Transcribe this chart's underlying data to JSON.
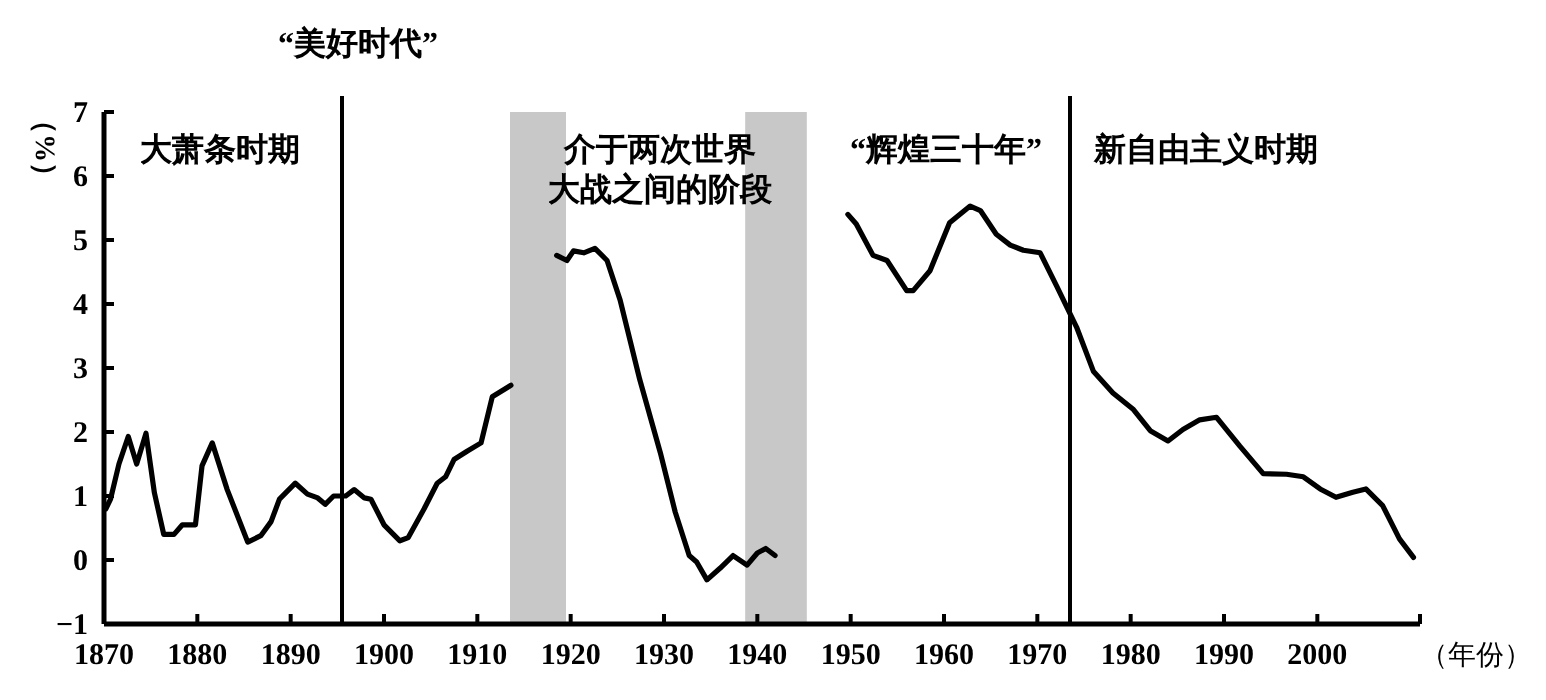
{
  "chart_data": {
    "type": "line",
    "xlabel": "（年份）",
    "ylabel": "（%）",
    "xlim": [
      1870,
      2011
    ],
    "ylim": [
      -1,
      7
    ],
    "xticks": [
      1870,
      1880,
      1890,
      1900,
      1910,
      1920,
      1930,
      1940,
      1950,
      1960,
      1970,
      1980,
      1990,
      2000
    ],
    "yticks": [
      -1,
      0,
      1,
      2,
      3,
      4,
      5,
      6,
      7
    ],
    "grid": false,
    "marker": "none",
    "line_style": "solid",
    "ref_lines": [
      {
        "axis": "x",
        "value": 1895.5,
        "label": "“美好时代”",
        "color": "#000000"
      },
      {
        "axis": "x",
        "value": 1973.5,
        "label": null,
        "color": "#000000"
      }
    ],
    "bands": [
      {
        "axis": "x",
        "from": 1913.5,
        "to": 1919.5,
        "label": null,
        "color": "#c8c8c8"
      },
      {
        "axis": "x",
        "from": 1938.7,
        "to": 1945.3,
        "label": null,
        "color": "#c8c8c8"
      }
    ],
    "annotations": [
      "大萧条时期",
      "介于两次世界大战之间的阶段",
      "“辉煌三十年”",
      "新自由主义时期"
    ],
    "series": [
      {
        "color": "#000000",
        "x": [
          1870.2,
          1870.7,
          1871.6,
          1872.6,
          1873.5,
          1874.5,
          1875.4,
          1876.4,
          1877.5,
          1878.4,
          1879.8,
          1880.5,
          1881.6,
          1883.2,
          1885.4,
          1886.8,
          1887.9,
          1888.8,
          1890.5,
          1891.8,
          1892.9,
          1893.7,
          1894.6,
          1895.9,
          1896.8,
          1897.9,
          1898.6,
          1900.0,
          1901.7,
          1902.6,
          1904.3,
          1905.7,
          1906.6,
          1907.5,
          1908.9,
          1910.4,
          1911.6,
          1913.6
        ],
        "values": [
          0.8,
          0.95,
          1.5,
          1.93,
          1.5,
          1.98,
          1.05,
          0.4,
          0.4,
          0.55,
          0.55,
          1.47,
          1.83,
          1.1,
          0.28,
          0.38,
          0.6,
          0.95,
          1.2,
          1.03,
          0.97,
          0.87,
          1.0,
          1.0,
          1.1,
          0.97,
          0.95,
          0.55,
          0.3,
          0.35,
          0.8,
          1.2,
          1.3,
          1.57,
          1.7,
          1.83,
          2.55,
          2.73
        ]
      },
      {
        "color": "#000000",
        "x": [
          1918.5,
          1919.6,
          1920.3,
          1921.4,
          1922.6,
          1923.9,
          1925.3,
          1927.4,
          1929.6,
          1931.2,
          1932.7,
          1933.5,
          1934.6,
          1936.0,
          1937.4,
          1938.9,
          1940.0,
          1940.9,
          1941.9
        ],
        "values": [
          4.76,
          4.68,
          4.83,
          4.8,
          4.87,
          4.68,
          4.06,
          2.82,
          1.68,
          0.75,
          0.07,
          -0.03,
          -0.31,
          -0.13,
          0.07,
          -0.08,
          0.11,
          0.18,
          0.07
        ]
      },
      {
        "color": "#000000",
        "x": [
          1949.7,
          1950.6,
          1952.4,
          1953.9,
          1956.0,
          1956.7,
          1958.5,
          1960.6,
          1962.8,
          1963.9,
          1965.6,
          1967.1,
          1968.5,
          1970.3,
          1972.1,
          1974.2,
          1976.0,
          1978.1,
          1980.3,
          1982.1,
          1984.0,
          1985.6,
          1987.4,
          1989.2,
          1991.7,
          1994.2,
          1996.7,
          1998.5,
          2000.3,
          2002.0,
          2003.8,
          2005.2,
          2007.0,
          2008.8,
          2010.3
        ],
        "values": [
          5.4,
          5.25,
          4.76,
          4.68,
          4.21,
          4.21,
          4.52,
          5.27,
          5.53,
          5.46,
          5.09,
          4.92,
          4.84,
          4.8,
          4.27,
          3.64,
          2.95,
          2.61,
          2.35,
          2.02,
          1.86,
          2.04,
          2.19,
          2.23,
          1.78,
          1.35,
          1.34,
          1.3,
          1.11,
          0.98,
          1.06,
          1.11,
          0.85,
          0.33,
          0.04
        ]
      }
    ]
  }
}
